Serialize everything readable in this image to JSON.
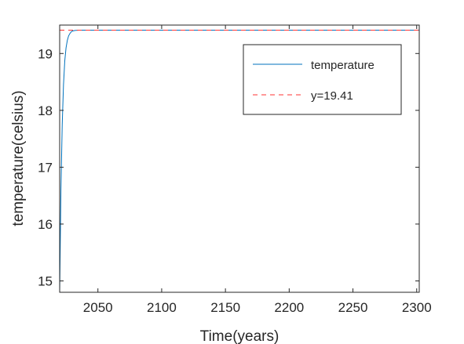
{
  "chart_data": {
    "type": "line",
    "xlabel": "Time(years)",
    "ylabel": "temperature(celsius)",
    "xlim": [
      2020,
      2302
    ],
    "ylim": [
      14.8,
      19.5
    ],
    "xticks": [
      2050,
      2100,
      2150,
      2200,
      2250,
      2300
    ],
    "yticks": [
      15,
      16,
      17,
      18,
      19
    ],
    "grid": false,
    "legend_position": "top-right",
    "colors": {
      "temperature": "#0072BD",
      "reference": "#FF3333"
    },
    "series": [
      {
        "name": "temperature",
        "style": "solid",
        "x": [
          2020,
          2021,
          2022,
          2023,
          2024,
          2025,
          2026,
          2027,
          2028,
          2029,
          2030,
          2032,
          2035,
          2040,
          2050,
          2100,
          2150,
          2200,
          2250,
          2302
        ],
        "y": [
          14.8,
          16.6,
          17.75,
          18.45,
          18.87,
          19.1,
          19.23,
          19.31,
          19.35,
          19.38,
          19.395,
          19.405,
          19.41,
          19.41,
          19.41,
          19.41,
          19.41,
          19.41,
          19.41,
          19.41
        ]
      },
      {
        "name": "y=19.41",
        "style": "dashed",
        "x": [
          2020,
          2302
        ],
        "y": [
          19.41,
          19.41
        ]
      }
    ]
  }
}
